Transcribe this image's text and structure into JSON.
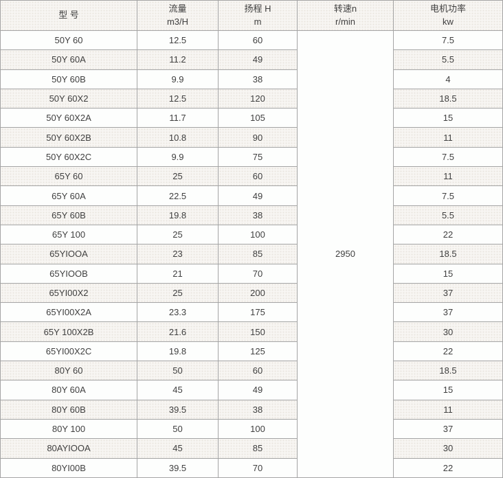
{
  "table": {
    "headers": [
      {
        "line1": "型 号",
        "line2": ""
      },
      {
        "line1": "流量",
        "line2": "m3/H"
      },
      {
        "line1": "扬程 H",
        "line2": "m"
      },
      {
        "line1": "转速n",
        "line2": "r/min"
      },
      {
        "line1": "电机功率",
        "line2": "kw"
      }
    ],
    "speed_value": "2950",
    "rows": [
      {
        "model": "50Y 60",
        "flow": "12.5",
        "head": "60",
        "power": "7.5"
      },
      {
        "model": "50Y 60A",
        "flow": "11.2",
        "head": "49",
        "power": "5.5"
      },
      {
        "model": "50Y 60B",
        "flow": "9.9",
        "head": "38",
        "power": "4"
      },
      {
        "model": "50Y 60X2",
        "flow": "12.5",
        "head": "120",
        "power": "18.5"
      },
      {
        "model": "50Y 60X2A",
        "flow": "11.7",
        "head": "105",
        "power": "15"
      },
      {
        "model": "50Y 60X2B",
        "flow": "10.8",
        "head": "90",
        "power": "11"
      },
      {
        "model": "50Y 60X2C",
        "flow": "9.9",
        "head": "75",
        "power": "7.5"
      },
      {
        "model": "65Y 60",
        "flow": "25",
        "head": "60",
        "power": "11"
      },
      {
        "model": "65Y 60A",
        "flow": "22.5",
        "head": "49",
        "power": "7.5"
      },
      {
        "model": "65Y 60B",
        "flow": "19.8",
        "head": "38",
        "power": "5.5"
      },
      {
        "model": "65Y 100",
        "flow": "25",
        "head": "100",
        "power": "22"
      },
      {
        "model": "65YIOOA",
        "flow": "23",
        "head": "85",
        "power": "18.5"
      },
      {
        "model": "65YIOOB",
        "flow": "21",
        "head": "70",
        "power": "15"
      },
      {
        "model": "65YI00X2",
        "flow": "25",
        "head": "200",
        "power": "37"
      },
      {
        "model": "65YI00X2A",
        "flow": "23.3",
        "head": "175",
        "power": "37"
      },
      {
        "model": "65Y 100X2B",
        "flow": "21.6",
        "head": "150",
        "power": "30"
      },
      {
        "model": "65YI00X2C",
        "flow": "19.8",
        "head": "125",
        "power": "22"
      },
      {
        "model": "80Y 60",
        "flow": "50",
        "head": "60",
        "power": "18.5"
      },
      {
        "model": "80Y 60A",
        "flow": "45",
        "head": "49",
        "power": "15"
      },
      {
        "model": "80Y 60B",
        "flow": "39.5",
        "head": "38",
        "power": "11"
      },
      {
        "model": "80Y 100",
        "flow": "50",
        "head": "100",
        "power": "37"
      },
      {
        "model": "80AYIOOA",
        "flow": "45",
        "head": "85",
        "power": "30"
      },
      {
        "model": "80YI00B",
        "flow": "39.5",
        "head": "70",
        "power": "22"
      }
    ]
  },
  "colors": {
    "border": "#a4a4a4",
    "stripe_bg": "#f7f5f2",
    "row_bg": "#fdfefd",
    "text": "#3f3f3f"
  }
}
